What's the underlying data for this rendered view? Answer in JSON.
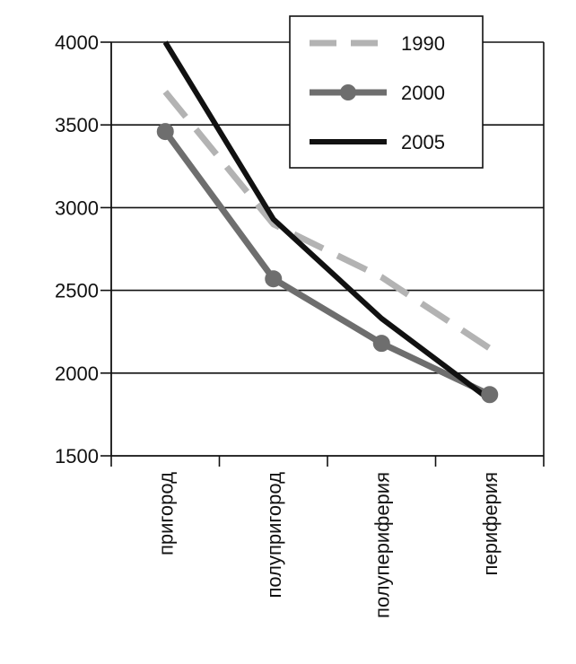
{
  "chart_data": {
    "type": "line",
    "title": "",
    "xlabel": "",
    "ylabel": "",
    "categories": [
      "пригород",
      "полупригород",
      "полупериферия",
      "периферия"
    ],
    "ylim": [
      1500,
      4000
    ],
    "yticks": [
      "4000",
      "3500",
      "3000",
      "2500",
      "2000",
      "1500"
    ],
    "grid": true,
    "legend_position": "top-right",
    "series": [
      {
        "name": "1990",
        "values": [
          3700,
          2900,
          2580,
          2150
        ],
        "color": "#b3b3b3",
        "style": "dashed",
        "markers": false
      },
      {
        "name": "2000",
        "values": [
          3460,
          2570,
          2180,
          1870
        ],
        "color": "#6e6e6e",
        "style": "solid",
        "markers": true
      },
      {
        "name": "2005",
        "values": [
          4000,
          2930,
          2330,
          1840
        ],
        "color": "#111111",
        "style": "solid",
        "markers": false
      }
    ]
  }
}
